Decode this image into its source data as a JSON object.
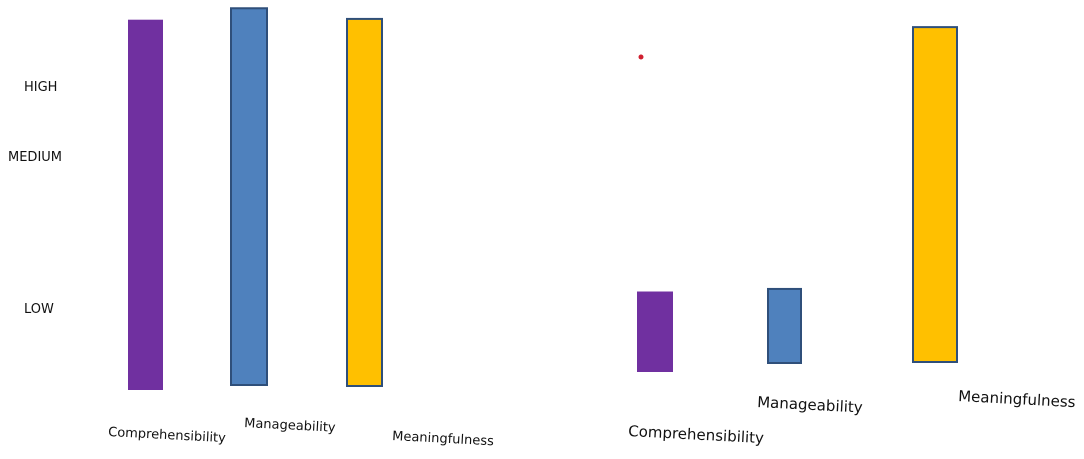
{
  "levels": {
    "high": "HIGH",
    "medium": "MEDIUM",
    "low": "LOW"
  },
  "chart_data": [
    {
      "type": "bar",
      "categories": [
        "Comprehensibility",
        "Manageability",
        "Meaningfulness"
      ],
      "values": [
        1.15,
        1.17,
        1.14
      ],
      "colors": [
        "#7030A0",
        "#4F81BD",
        "#FFC000"
      ],
      "ylim": [
        0,
        1.2
      ],
      "grid": false,
      "legend": "none"
    },
    {
      "type": "bar",
      "categories": [
        "Comprehensibility",
        "Manageability",
        "Meaningfulness"
      ],
      "values": [
        0.25,
        0.23,
        1.04
      ],
      "colors": [
        "#7030A0",
        "#4F81BD",
        "#FFC000"
      ],
      "ylim": [
        0,
        1.2
      ],
      "grid": false,
      "legend": "none"
    }
  ]
}
